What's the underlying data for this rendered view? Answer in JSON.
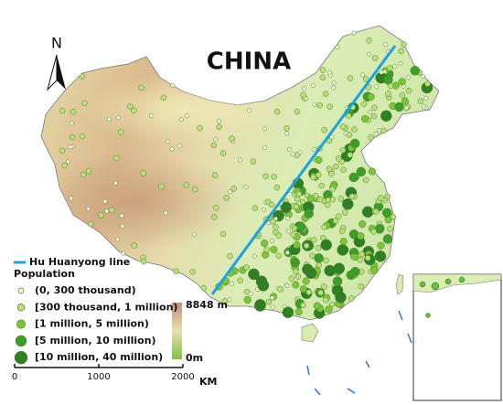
{
  "map": {
    "title": "CHINA",
    "north": "N",
    "legend": {
      "line": "Hu Huanyong line",
      "population_title": "Population",
      "classes": [
        "(0, 300 thousand)",
        "[300 thousand, 1 million)",
        "[1 million, 5 million)",
        "[5 million, 10 million)",
        "[10 million, 40 million)"
      ]
    },
    "elevation": {
      "max": "8848 m",
      "min": "0m"
    },
    "scale_bar": {
      "ticks": [
        0,
        1000,
        2000
      ],
      "unit": "KM"
    }
  }
}
